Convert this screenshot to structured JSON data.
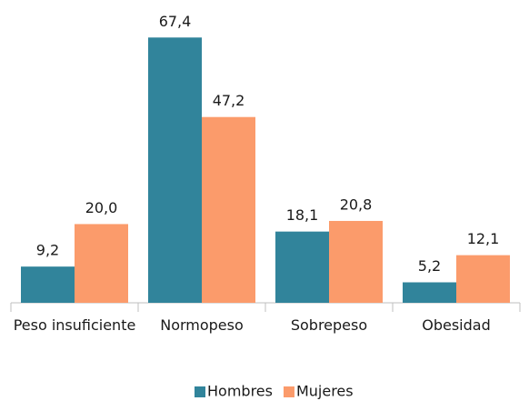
{
  "chart_data": {
    "type": "bar",
    "categories": [
      "Peso insuficiente",
      "Normopeso",
      "Sobrepeso",
      "Obesidad"
    ],
    "series": [
      {
        "name": "Hombres",
        "color": "#31849b",
        "values": [
          9.2,
          67.4,
          18.1,
          5.2
        ],
        "value_labels": [
          "9,2",
          "67,4",
          "18,1",
          "5,2"
        ]
      },
      {
        "name": "Mujeres",
        "color": "#fb9b6b",
        "values": [
          20.0,
          47.2,
          20.8,
          12.1
        ],
        "value_labels": [
          "20,0",
          "47,2",
          "20,8",
          "12,1"
        ]
      }
    ],
    "ylim": [
      0,
      70
    ],
    "legend": "bottom"
  }
}
